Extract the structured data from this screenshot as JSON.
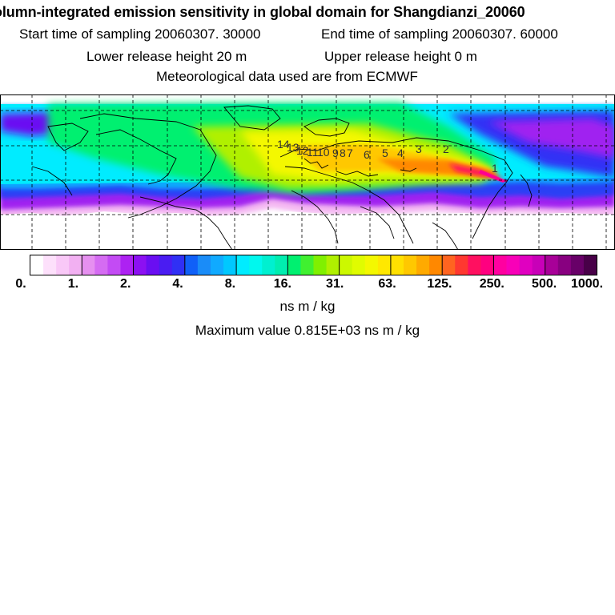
{
  "header": {
    "title": "olumn-integrated emission sensitivity in global domain for Shangdianzi_20060",
    "start_label": "Start time of sampling 20060307. 30000",
    "end_label": "End time of sampling 20060307. 60000",
    "lower_label": "Lower release height   20 m",
    "upper_label": "Upper release height    0 m",
    "met_label": "Meteorological data used are from ECMWF"
  },
  "map": {
    "day_markers": [
      "14",
      "13",
      "12",
      "11",
      "10",
      "9",
      "8",
      "7",
      "6",
      "5",
      "4",
      "3",
      "2",
      "1"
    ],
    "colors": {
      "plume_core": "#ff0090",
      "high": "#ffd700",
      "mid": "#ccff00",
      "low": "#00ff88",
      "background": "#00ffff"
    }
  },
  "colorbar": {
    "labels": [
      "0.",
      "1.",
      "2.",
      "4.",
      "8.",
      "16.",
      "31.",
      "63.",
      "125.",
      "250.",
      "500.",
      "1000."
    ],
    "colors": [
      [
        "#ffffff",
        "#fde0fb",
        "#f9c8f7",
        "#f2b0f2"
      ],
      [
        "#e690f0",
        "#d56cf2",
        "#c34bf4",
        "#ad22f2"
      ],
      [
        "#8c10f2",
        "#6a0ef2",
        "#4a1cf2",
        "#3030f5"
      ],
      [
        "#1060f8",
        "#1a8cf8",
        "#10aaff",
        "#00c8ff"
      ],
      [
        "#00ecff",
        "#00f8ee",
        "#00f0d0",
        "#00eeb0"
      ],
      [
        "#00f070",
        "#40f030",
        "#80f000",
        "#b0f000"
      ],
      [
        "#ccf800",
        "#e0fc00",
        "#f4f800",
        "#ffe800"
      ],
      [
        "#ffe000",
        "#ffc800",
        "#ffaa00",
        "#ff8800"
      ],
      [
        "#ff6420",
        "#ff3830",
        "#ff1060",
        "#ff0080"
      ],
      [
        "#ff00a0",
        "#f800b8",
        "#e000c0",
        "#c800b8"
      ],
      [
        "#a80098",
        "#880080",
        "#680068",
        "#480048"
      ]
    ],
    "units": "ns m / kg",
    "max_label": "Maximum value  0.815E+03 ns m / kg"
  }
}
